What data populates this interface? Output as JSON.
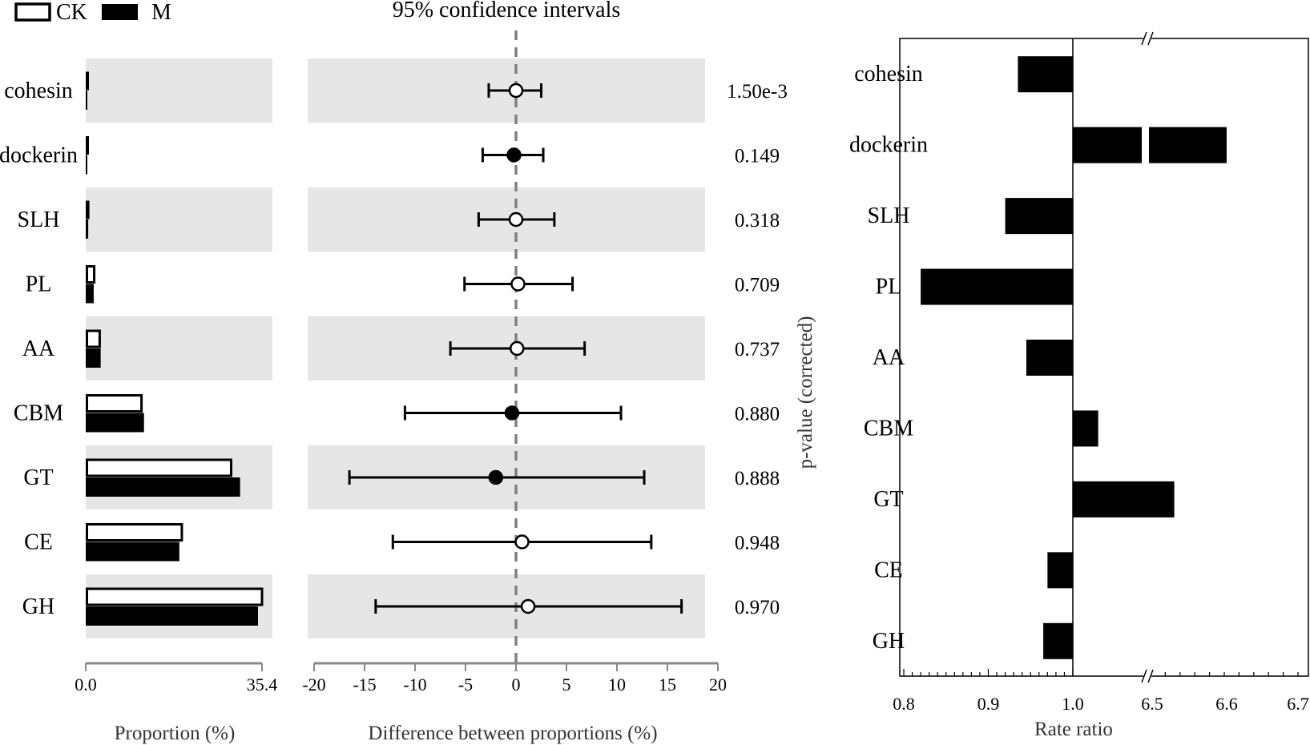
{
  "legend": {
    "ck_label": "CK",
    "m_label": "M"
  },
  "colors": {
    "band": "#e6e6e6",
    "bar_ck_fill": "#ffffff",
    "bar_m_fill": "#000000",
    "axis": "#888888",
    "dashed": "#808080"
  },
  "chart_data": [
    {
      "type": "bar",
      "name": "proportion-panel",
      "categories": [
        "cohesin",
        "dockerin",
        "SLH",
        "PL",
        "AA",
        "CBM",
        "GT",
        "CE",
        "GH"
      ],
      "series": [
        {
          "name": "CK",
          "values": [
            0.2,
            0.3,
            0.5,
            1.7,
            2.8,
            11.2,
            29.2,
            19.3,
            35.4
          ]
        },
        {
          "name": "M",
          "values": [
            0.2,
            0.3,
            0.5,
            1.6,
            3.0,
            11.7,
            31.0,
            18.8,
            34.6
          ]
        }
      ],
      "xlabel": "Proportion (%)",
      "xlim": [
        0,
        35.4
      ],
      "xticks": [
        "0.0",
        "35.4"
      ]
    },
    {
      "type": "scatter",
      "name": "difference-panel",
      "title": "95% confidence intervals",
      "categories": [
        "cohesin",
        "dockerin",
        "SLH",
        "PL",
        "AA",
        "CBM",
        "GT",
        "CE",
        "GH"
      ],
      "points": [
        {
          "mean": 0.0,
          "lo": -2.7,
          "hi": 2.5,
          "filled": false
        },
        {
          "mean": -0.2,
          "lo": -3.3,
          "hi": 2.7,
          "filled": true
        },
        {
          "mean": 0.0,
          "lo": -3.7,
          "hi": 3.8,
          "filled": false
        },
        {
          "mean": 0.2,
          "lo": -5.1,
          "hi": 5.6,
          "filled": false
        },
        {
          "mean": 0.1,
          "lo": -6.5,
          "hi": 6.8,
          "filled": false
        },
        {
          "mean": -0.4,
          "lo": -11.0,
          "hi": 10.4,
          "filled": true
        },
        {
          "mean": -2.0,
          "lo": -16.5,
          "hi": 12.7,
          "filled": true
        },
        {
          "mean": 0.6,
          "lo": -12.2,
          "hi": 13.4,
          "filled": false
        },
        {
          "mean": 1.2,
          "lo": -13.9,
          "hi": 16.4,
          "filled": false
        }
      ],
      "xlabel": "Difference between proportions (%)",
      "xlim": [
        -20,
        20
      ],
      "xticks": [
        "-20",
        "-15",
        "-10",
        "-5",
        "0",
        "5",
        "10",
        "15",
        "20"
      ],
      "pvalues": [
        "1.50e-3",
        "0.149",
        "0.318",
        "0.709",
        "0.737",
        "0.880",
        "0.888",
        "0.948",
        "0.970"
      ],
      "pvalue_axis_label": "p-value (corrected)"
    },
    {
      "type": "bar",
      "name": "rate-ratio-panel",
      "orientation": "horizontal",
      "categories": [
        "cohesin",
        "dockerin",
        "SLH",
        "PL",
        "AA",
        "CBM",
        "GT",
        "CE",
        "GH"
      ],
      "baseline": 1.0,
      "segment_left_range": [
        0.8,
        1.0
      ],
      "segment_right_range": [
        6.5,
        6.7
      ],
      "values": [
        0.935,
        6.6,
        0.92,
        0.82,
        0.945,
        1.03,
        1.12,
        0.97,
        0.965
      ],
      "xlabel": "Rate ratio",
      "xticks": [
        "0.8",
        "0.9",
        "1.0",
        "6.5",
        "6.6",
        "6.7"
      ],
      "axis_break": true
    }
  ]
}
